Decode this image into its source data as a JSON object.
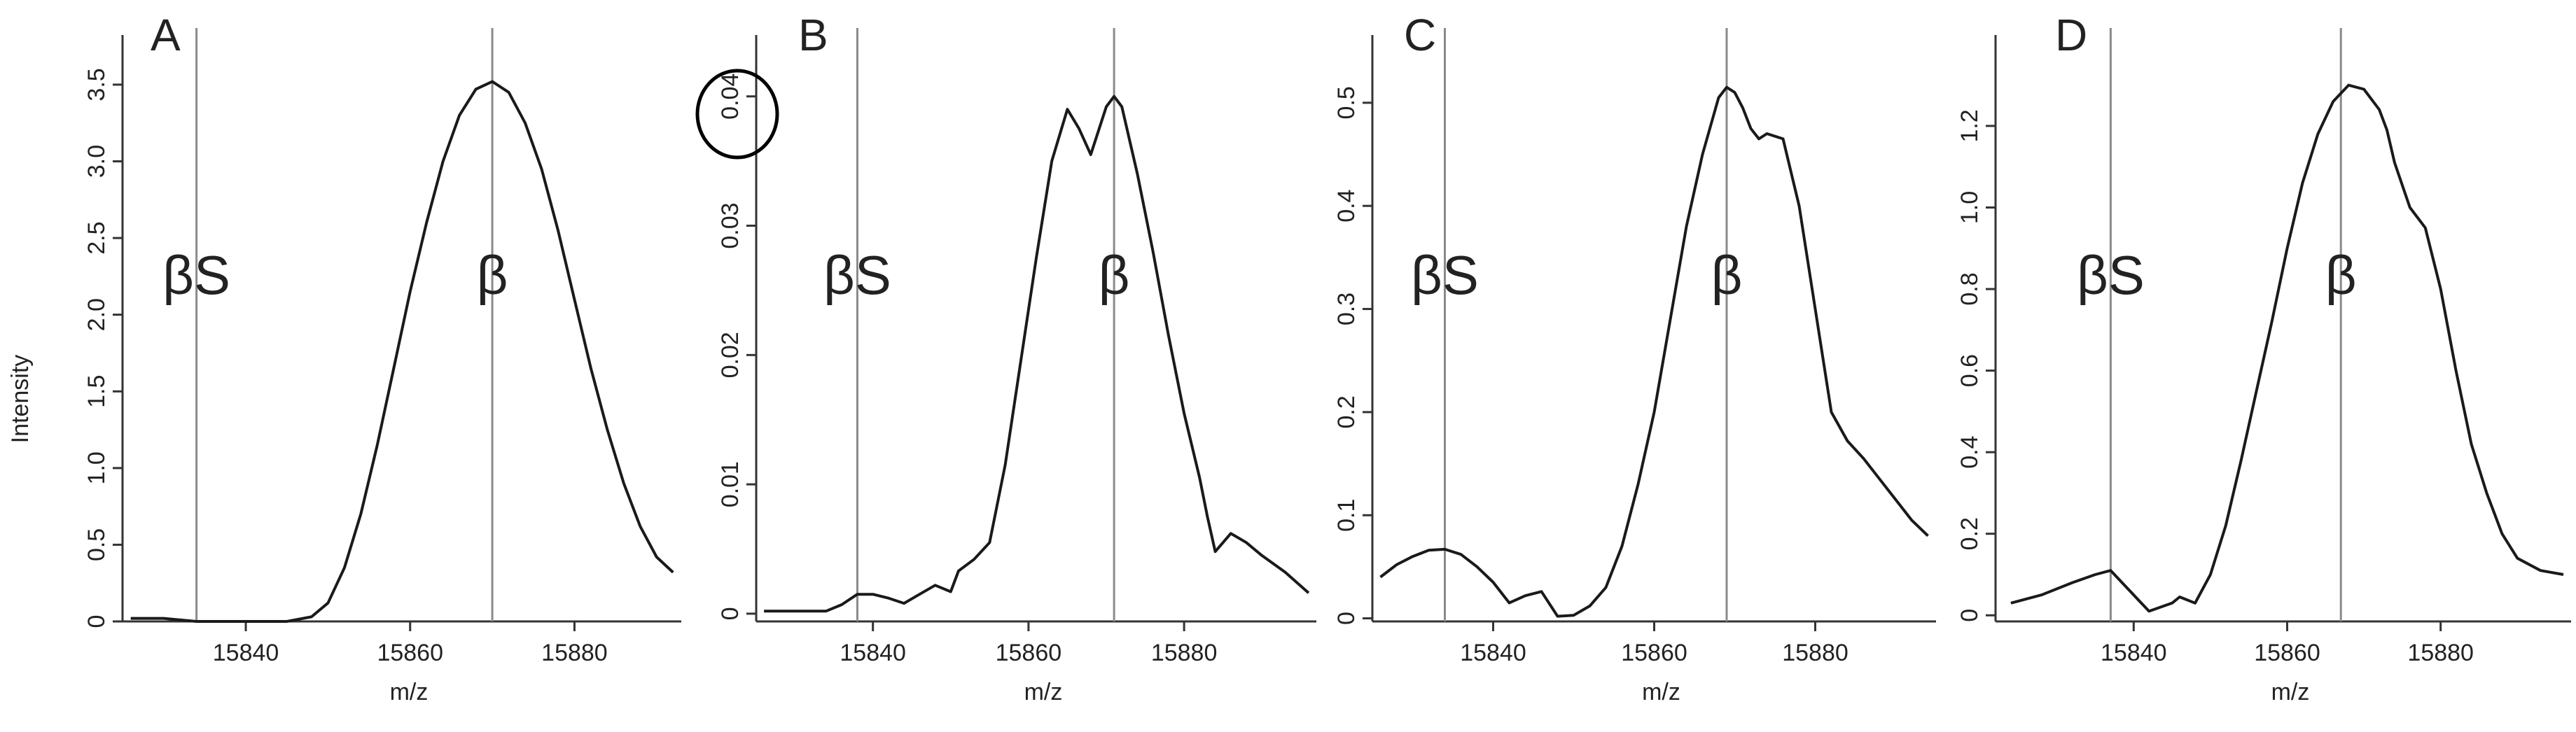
{
  "figure": {
    "ylabel": "Intensity"
  },
  "chart_data": [
    {
      "panel": "A",
      "type": "line",
      "xlabel": "m/z",
      "ylabel": "Intensity",
      "xlim": [
        15825,
        15893
      ],
      "ylim": [
        0,
        3.55
      ],
      "xticks": [
        15840,
        15860,
        15880
      ],
      "yticks": [
        0,
        0.5,
        1.0,
        1.5,
        2.0,
        2.5,
        3.0,
        3.5
      ],
      "ytick_labels": [
        "0",
        "0.5",
        "1.0",
        "1.5",
        "2.0",
        "2.5",
        "3.0",
        "3.5"
      ],
      "markers": [
        {
          "label": "βS",
          "x": 15834
        },
        {
          "label": "β",
          "x": 15870
        }
      ],
      "x": [
        15826,
        15830,
        15834,
        15840,
        15845,
        15848,
        15850,
        15852,
        15854,
        15856,
        15858,
        15860,
        15862,
        15864,
        15866,
        15868,
        15870,
        15872,
        15874,
        15876,
        15878,
        15880,
        15882,
        15884,
        15886,
        15888,
        15890,
        15892
      ],
      "y": [
        0.02,
        0.02,
        0.0,
        0.0,
        0.0,
        0.03,
        0.12,
        0.35,
        0.7,
        1.15,
        1.65,
        2.15,
        2.6,
        3.0,
        3.3,
        3.47,
        3.52,
        3.45,
        3.25,
        2.95,
        2.55,
        2.1,
        1.65,
        1.25,
        0.9,
        0.62,
        0.42,
        0.32
      ]
    },
    {
      "panel": "B",
      "type": "line",
      "xlabel": "m/z",
      "xlim": [
        15825,
        15897
      ],
      "ylim": [
        -0.0006,
        0.0415
      ],
      "xticks": [
        15840,
        15860,
        15880
      ],
      "yticks": [
        0,
        0.01,
        0.02,
        0.03,
        0.04
      ],
      "ytick_labels": [
        "0",
        "0.01",
        "0.02",
        "0.03",
        "0.04"
      ],
      "markers": [
        {
          "label": "βS",
          "x": 15838
        },
        {
          "label": "β",
          "x": 15871
        }
      ],
      "x": [
        15826,
        15830,
        15834,
        15836,
        15838,
        15840,
        15842,
        15844,
        15846,
        15848,
        15850,
        15851,
        15853,
        15855,
        15857,
        15859,
        15861,
        15863,
        15865,
        15866.5,
        15868,
        15870,
        15871,
        15872,
        15874,
        15876,
        15878,
        15880,
        15882,
        15883,
        15884,
        15886,
        15888,
        15890,
        15893,
        15896
      ],
      "y": [
        0.0002,
        0.0002,
        0.0002,
        0.0007,
        0.0015,
        0.0015,
        0.0012,
        0.0008,
        0.0015,
        0.0022,
        0.0017,
        0.0033,
        0.0042,
        0.0055,
        0.0115,
        0.0195,
        0.0275,
        0.035,
        0.039,
        0.0375,
        0.0355,
        0.0392,
        0.04,
        0.0392,
        0.034,
        0.028,
        0.0215,
        0.0155,
        0.0105,
        0.0075,
        0.0048,
        0.0062,
        0.0055,
        0.0045,
        0.0032,
        0.0016
      ]
    },
    {
      "panel": "C",
      "type": "line",
      "xlabel": "m/z",
      "xlim": [
        15825,
        15895
      ],
      "ylim": [
        -0.003,
        0.525
      ],
      "xticks": [
        15840,
        15860,
        15880
      ],
      "yticks": [
        0,
        0.1,
        0.2,
        0.3,
        0.4,
        0.5
      ],
      "ytick_labels": [
        "0",
        "0.1",
        "0.2",
        "0.3",
        "0.4",
        "0.5"
      ],
      "markers": [
        {
          "label": "βS",
          "x": 15834
        },
        {
          "label": "β",
          "x": 15869
        }
      ],
      "x": [
        15826,
        15828,
        15830,
        15832,
        15834,
        15836,
        15838,
        15840,
        15842,
        15844,
        15846,
        15848,
        15850,
        15852,
        15854,
        15856,
        15858,
        15860,
        15862,
        15864,
        15866,
        15868,
        15869,
        15870,
        15871,
        15872,
        15873,
        15874,
        15876,
        15878,
        15880,
        15882,
        15884,
        15886,
        15888,
        15890,
        15892,
        15894
      ],
      "y": [
        0.04,
        0.052,
        0.06,
        0.066,
        0.067,
        0.062,
        0.05,
        0.035,
        0.015,
        0.022,
        0.026,
        0.002,
        0.003,
        0.012,
        0.03,
        0.07,
        0.13,
        0.2,
        0.29,
        0.38,
        0.45,
        0.505,
        0.515,
        0.51,
        0.495,
        0.475,
        0.465,
        0.47,
        0.465,
        0.4,
        0.3,
        0.2,
        0.172,
        0.155,
        0.135,
        0.115,
        0.095,
        0.08
      ]
    },
    {
      "panel": "D",
      "type": "line",
      "xlabel": "m/z",
      "xlim": [
        15822,
        15897
      ],
      "ylim": [
        -0.015,
        1.32
      ],
      "xticks": [
        15840,
        15860,
        15880
      ],
      "yticks": [
        0,
        0.2,
        0.4,
        0.6,
        0.8,
        1.0,
        1.2
      ],
      "ytick_labels": [
        "0",
        "0.2",
        "0.4",
        "0.6",
        "0.8",
        "1.0",
        "1.2"
      ],
      "markers": [
        {
          "label": "βS",
          "x": 15837
        },
        {
          "label": "β",
          "x": 15867
        }
      ],
      "x": [
        15824,
        15828,
        15832,
        15835,
        15837,
        15839,
        15842,
        15845,
        15846,
        15848,
        15850,
        15852,
        15854,
        15856,
        15858,
        15860,
        15862,
        15864,
        15866,
        15868,
        15870,
        15872,
        15873,
        15874,
        15876,
        15878,
        15880,
        15882,
        15884,
        15886,
        15888,
        15890,
        15893,
        15896
      ],
      "y": [
        0.03,
        0.05,
        0.08,
        0.1,
        0.11,
        0.07,
        0.01,
        0.03,
        0.045,
        0.03,
        0.1,
        0.22,
        0.38,
        0.55,
        0.72,
        0.9,
        1.06,
        1.18,
        1.26,
        1.3,
        1.29,
        1.24,
        1.19,
        1.11,
        1.0,
        0.95,
        0.8,
        0.6,
        0.42,
        0.3,
        0.2,
        0.14,
        0.11,
        0.1
      ]
    }
  ]
}
